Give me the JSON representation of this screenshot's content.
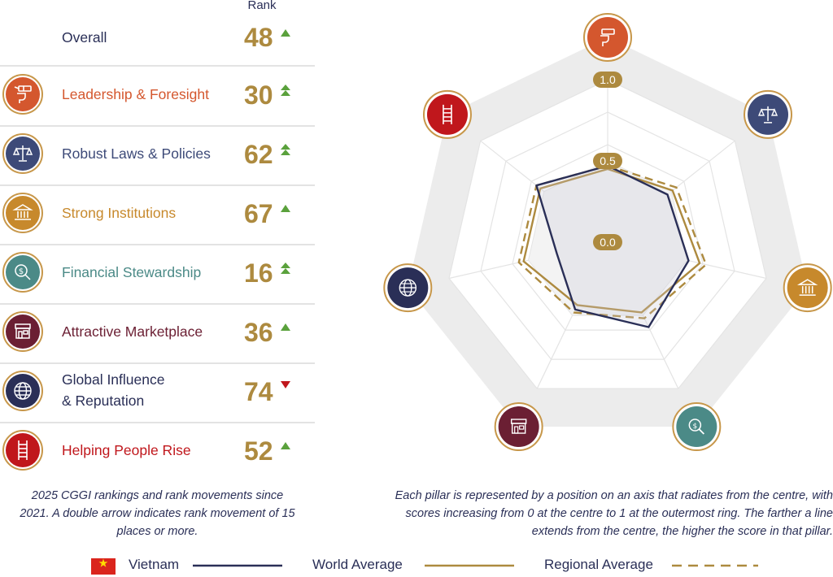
{
  "header": {
    "rank_label": "Rank"
  },
  "overall": {
    "label": "Overall",
    "rank": "48",
    "movement": "up"
  },
  "pillars": [
    {
      "label": "Leadership & Foresight",
      "rank": "30",
      "movement": "double-up",
      "color": "#d4572e",
      "icon": "telescope-hand-icon"
    },
    {
      "label": "Robust Laws & Policies",
      "rank": "62",
      "movement": "double-up",
      "color": "#3d4a78",
      "icon": "scales-icon"
    },
    {
      "label": "Strong Institutions",
      "rank": "67",
      "movement": "up",
      "color": "#c7892c",
      "icon": "bank-building-icon"
    },
    {
      "label": "Financial Stewardship",
      "rank": "16",
      "movement": "double-up",
      "color": "#4b8a87",
      "icon": "dollar-magnifier-icon"
    },
    {
      "label": "Attractive Marketplace",
      "rank": "36",
      "movement": "up",
      "color": "#6b1f33",
      "icon": "storefront-icon"
    },
    {
      "label": "Global Influence & Reputation",
      "label_line1": "Global Influence",
      "label_line2": "& Reputation",
      "rank": "74",
      "movement": "down",
      "color": "#2a2f57",
      "icon": "globe-icon"
    },
    {
      "label": "Helping People Rise",
      "rank": "52",
      "movement": "up",
      "color": "#c0171c",
      "icon": "ladder-icon"
    }
  ],
  "captions": {
    "left": "2025 CGGI rankings and rank movements since 2021. A double arrow indicates rank movement of 15 places or more.",
    "right": "Each pillar is represented by a position on an axis that radiates from the centre, with scores increasing from 0 at the centre to 1 at the outermost ring. The farther a line extends from the centre, the higher the score in that pillar."
  },
  "legend": {
    "vietnam": "Vietnam",
    "world": "World Average",
    "regional": "Regional Average"
  },
  "colors": {
    "gold": "#ad8a3f",
    "navy": "#2a2f57",
    "up_arrow": "#5aa13c",
    "down_arrow": "#c0171c"
  },
  "chart_data": {
    "type": "radar",
    "axes": [
      "Leadership & Foresight",
      "Robust Laws & Policies",
      "Strong Institutions",
      "Financial Stewardship",
      "Attractive Marketplace",
      "Global Influence & Reputation",
      "Helping People Rise"
    ],
    "ring_labels": [
      "0.0",
      "0.5",
      "1.0"
    ],
    "range": [
      0,
      1
    ],
    "series": [
      {
        "name": "Vietnam",
        "values": [
          0.47,
          0.47,
          0.51,
          0.58,
          0.46,
          0.32,
          0.56
        ],
        "style": "solid",
        "color": "#2a2f57"
      },
      {
        "name": "World Average",
        "values": [
          0.45,
          0.51,
          0.58,
          0.48,
          0.43,
          0.53,
          0.53
        ],
        "style": "solid",
        "color": "#ad8a3f"
      },
      {
        "name": "Regional Average",
        "values": [
          0.47,
          0.54,
          0.62,
          0.52,
          0.48,
          0.56,
          0.56
        ],
        "style": "dashed",
        "color": "#ad8a3f"
      }
    ]
  }
}
